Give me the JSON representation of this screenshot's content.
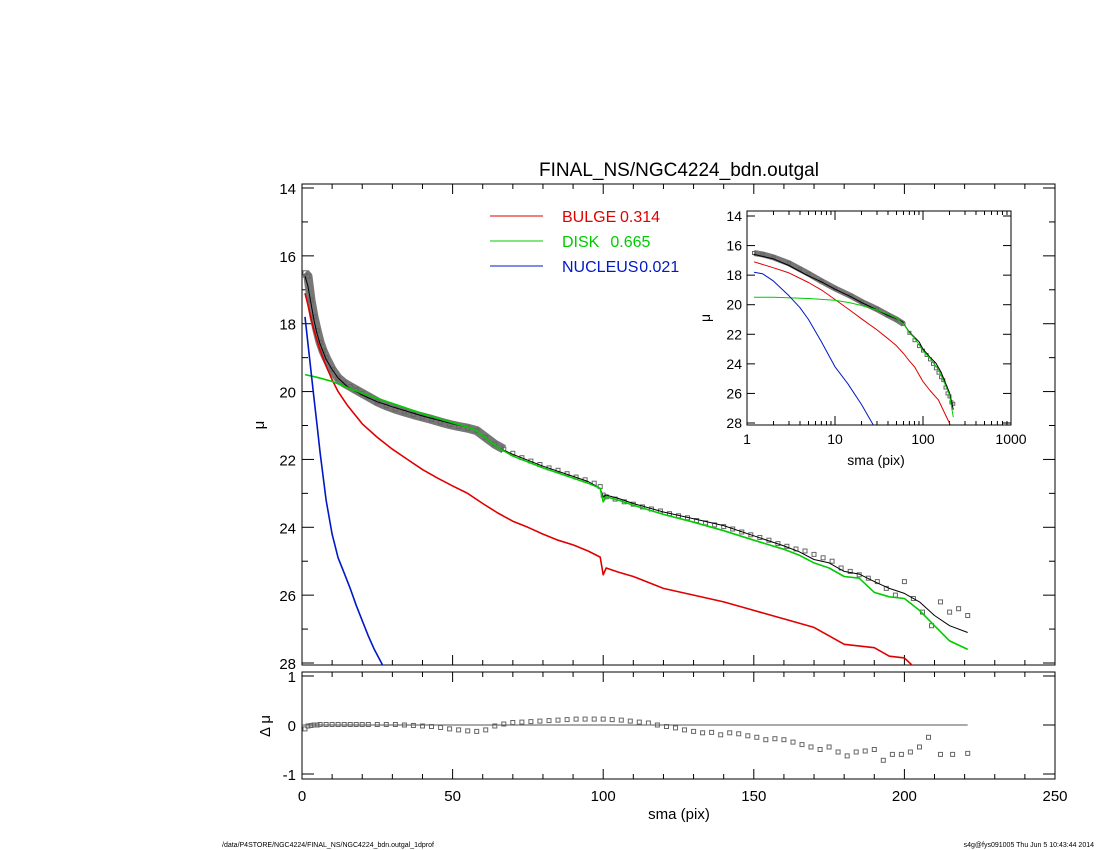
{
  "colors": {
    "bulge": "#e00000",
    "disk": "#00cc00",
    "nucleus": "#0018c8",
    "total": "#000000",
    "data_points": "#666666"
  },
  "footer": {
    "left": "/data/P4STORE/NGC4224/FINAL_NS/NGC4224_bdn.outgal_1dprof",
    "right": "s4g@fys091005  Thu Jun  5 10:43:44 2014"
  },
  "chart_data": [
    {
      "id": "main",
      "type": "line",
      "title": "FINAL_NS/NGC4224_bdn.outgal",
      "xlabel": "",
      "ylabel": "μ",
      "xlim": [
        0,
        250
      ],
      "ylim": [
        28,
        14
      ],
      "y_inverted": true,
      "yticks": [
        "14",
        "16",
        "18",
        "20",
        "22",
        "24",
        "26",
        "28"
      ],
      "legend_position": "top-center",
      "legend": [
        {
          "label": "BULGE",
          "value": "0.314",
          "series": "bulge"
        },
        {
          "label": "DISK",
          "value": "0.665",
          "series": "disk"
        },
        {
          "label": "NUCLEUS",
          "value": "0.021",
          "series": "nucleus"
        }
      ],
      "series": [
        {
          "key": "data",
          "kind": "points",
          "x": [
            1,
            2,
            3,
            4,
            5,
            6,
            7,
            8,
            10,
            12,
            14,
            16,
            18,
            20,
            22,
            25,
            28,
            31,
            34,
            37,
            40,
            43,
            46,
            49,
            52,
            55,
            58,
            61,
            64,
            67,
            70,
            73,
            76,
            79,
            82,
            85,
            88,
            91,
            94,
            97,
            99,
            100,
            101,
            104,
            107,
            110,
            113,
            116,
            119,
            122,
            125,
            128,
            131,
            134,
            137,
            140,
            143,
            146,
            149,
            152,
            155,
            158,
            161,
            164,
            167,
            170,
            173,
            176,
            179,
            182,
            185,
            188,
            191,
            194,
            197,
            200,
            203,
            206,
            209,
            212,
            215,
            218,
            221
          ],
          "y": [
            16.5,
            16.6,
            17.3,
            17.8,
            18.2,
            18.55,
            18.8,
            19.0,
            19.35,
            19.6,
            19.75,
            19.85,
            19.95,
            20.05,
            20.15,
            20.3,
            20.42,
            20.52,
            20.6,
            20.68,
            20.75,
            20.82,
            20.9,
            20.97,
            21.03,
            21.08,
            21.15,
            21.35,
            21.55,
            21.7,
            21.82,
            21.95,
            22.05,
            22.15,
            22.25,
            22.32,
            22.42,
            22.52,
            22.6,
            22.7,
            22.8,
            23.05,
            23.1,
            23.17,
            23.25,
            23.32,
            23.4,
            23.46,
            23.52,
            23.6,
            23.66,
            23.72,
            23.8,
            23.87,
            23.93,
            23.98,
            24.05,
            24.14,
            24.22,
            24.3,
            24.38,
            24.48,
            24.56,
            24.64,
            24.7,
            24.8,
            24.9,
            25.0,
            25.2,
            25.3,
            25.4,
            25.5,
            25.6,
            25.8,
            26.0,
            25.6,
            26.1,
            26.5,
            26.9,
            26.2,
            26.5,
            26.4,
            26.6
          ]
        },
        {
          "key": "total",
          "kind": "line",
          "x": [
            1,
            2,
            3,
            4,
            5,
            6,
            8,
            10,
            12,
            15,
            20,
            25,
            30,
            40,
            50,
            55,
            58,
            60,
            65,
            70,
            80,
            90,
            95,
            99,
            100,
            101,
            105,
            110,
            120,
            130,
            140,
            150,
            160,
            165,
            170,
            175,
            180,
            185,
            190,
            195,
            200,
            205,
            210,
            215,
            221
          ],
          "y": [
            16.6,
            16.9,
            17.4,
            17.9,
            18.3,
            18.6,
            19.05,
            19.35,
            19.6,
            19.85,
            20.1,
            20.3,
            20.45,
            20.72,
            20.95,
            21.05,
            21.15,
            21.3,
            21.65,
            21.85,
            22.2,
            22.5,
            22.65,
            22.85,
            23.1,
            23.05,
            23.15,
            23.3,
            23.55,
            23.75,
            23.95,
            24.25,
            24.55,
            24.72,
            24.95,
            25.05,
            25.3,
            25.38,
            25.6,
            25.8,
            25.95,
            26.2,
            26.6,
            26.9,
            27.1
          ]
        },
        {
          "key": "bulge",
          "kind": "line",
          "x": [
            1,
            2,
            3,
            4,
            5,
            6,
            8,
            10,
            12,
            15,
            20,
            25,
            30,
            35,
            40,
            45,
            50,
            55,
            60,
            65,
            70,
            75,
            80,
            85,
            90,
            95,
            99,
            100,
            101,
            105,
            110,
            120,
            130,
            140,
            150,
            160,
            170,
            180,
            190,
            195,
            200,
            203
          ],
          "y": [
            17.1,
            17.45,
            17.85,
            18.2,
            18.5,
            18.78,
            19.25,
            19.65,
            20.0,
            20.4,
            20.95,
            21.35,
            21.7,
            22.0,
            22.3,
            22.55,
            22.78,
            23.0,
            23.3,
            23.58,
            23.82,
            24.0,
            24.2,
            24.38,
            24.52,
            24.7,
            24.88,
            25.4,
            25.2,
            25.32,
            25.45,
            25.8,
            26.0,
            26.2,
            26.45,
            26.7,
            26.95,
            27.45,
            27.55,
            27.8,
            27.85,
            28.1
          ]
        },
        {
          "key": "disk",
          "kind": "line",
          "x": [
            1,
            5,
            10,
            15,
            20,
            30,
            40,
            50,
            55,
            58,
            60,
            65,
            70,
            80,
            90,
            95,
            99,
            100,
            101,
            105,
            110,
            120,
            130,
            140,
            150,
            160,
            165,
            170,
            175,
            180,
            185,
            190,
            195,
            200,
            205,
            210,
            215,
            221
          ],
          "y": [
            19.5,
            19.58,
            19.7,
            19.88,
            20.05,
            20.35,
            20.65,
            20.92,
            21.05,
            21.15,
            21.3,
            21.65,
            21.9,
            22.25,
            22.55,
            22.7,
            22.85,
            23.25,
            23.1,
            23.2,
            23.35,
            23.62,
            23.85,
            24.1,
            24.38,
            24.65,
            24.82,
            25.05,
            25.2,
            25.45,
            25.5,
            25.92,
            26.05,
            26.1,
            26.45,
            26.9,
            27.35,
            27.6
          ]
        },
        {
          "key": "nucleus",
          "kind": "line",
          "x": [
            1,
            2,
            3,
            4,
            5,
            6,
            7,
            8,
            10,
            12,
            14,
            16,
            18,
            20,
            22,
            24,
            27
          ],
          "y": [
            17.8,
            18.6,
            19.4,
            20.2,
            21.0,
            21.8,
            22.5,
            23.2,
            24.2,
            24.9,
            25.35,
            25.8,
            26.3,
            26.75,
            27.2,
            27.6,
            28.1
          ]
        }
      ]
    },
    {
      "id": "residual",
      "type": "scatter",
      "xlabel": "sma (pix)",
      "ylabel": "Δ μ",
      "xlim": [
        0,
        250
      ],
      "ylim": [
        -1,
        1
      ],
      "xticks": [
        "0",
        "50",
        "100",
        "150",
        "200",
        "250"
      ],
      "yticks": [
        "1",
        "0",
        "-1"
      ],
      "zero_line": [
        0,
        221
      ],
      "x": [
        1,
        2,
        3,
        4,
        5,
        6,
        8,
        10,
        12,
        14,
        16,
        18,
        20,
        22,
        25,
        28,
        31,
        34,
        37,
        40,
        43,
        46,
        49,
        52,
        55,
        58,
        61,
        64,
        67,
        70,
        73,
        76,
        79,
        82,
        85,
        88,
        91,
        94,
        97,
        100,
        103,
        106,
        109,
        112,
        115,
        118,
        121,
        124,
        127,
        130,
        133,
        136,
        139,
        142,
        145,
        148,
        151,
        154,
        157,
        160,
        163,
        166,
        169,
        172,
        175,
        178,
        181,
        184,
        187,
        190,
        193,
        196,
        199,
        202,
        205,
        208,
        212,
        216,
        221
      ],
      "y": [
        -0.08,
        -0.02,
        -0.01,
        0.0,
        0.0,
        0.01,
        0.01,
        0.01,
        0.01,
        0.01,
        0.01,
        0.01,
        0.01,
        0.01,
        0.01,
        0.01,
        0.01,
        0.0,
        -0.01,
        -0.02,
        -0.03,
        -0.05,
        -0.08,
        -0.1,
        -0.12,
        -0.13,
        -0.1,
        -0.02,
        0.02,
        0.05,
        0.06,
        0.07,
        0.08,
        0.09,
        0.1,
        0.11,
        0.12,
        0.12,
        0.12,
        0.12,
        0.11,
        0.1,
        0.08,
        0.06,
        0.04,
        0.0,
        -0.03,
        -0.06,
        -0.1,
        -0.13,
        -0.16,
        -0.15,
        -0.2,
        -0.16,
        -0.18,
        -0.22,
        -0.25,
        -0.3,
        -0.28,
        -0.3,
        -0.35,
        -0.4,
        -0.45,
        -0.5,
        -0.45,
        -0.55,
        -0.63,
        -0.55,
        -0.53,
        -0.5,
        -0.72,
        -0.6,
        -0.6,
        -0.55,
        -0.45,
        -0.25,
        -0.6,
        -0.6,
        -0.58
      ]
    },
    {
      "id": "inset",
      "type": "line",
      "xlabel": "sma (pix)",
      "ylabel": "μ",
      "x_scale": "log",
      "xlim": [
        1,
        1000
      ],
      "ylim": [
        28,
        14
      ],
      "y_inverted": true,
      "xticks": [
        "1",
        "10",
        "100",
        "1000"
      ],
      "yticks": [
        "14",
        "16",
        "18",
        "20",
        "22",
        "24",
        "26",
        "28"
      ],
      "series": [
        {
          "key": "data",
          "kind": "points",
          "x": [
            1.2,
            1.5,
            2,
            3,
            4,
            5,
            7,
            10,
            15,
            20,
            30,
            40,
            50,
            60,
            70,
            80,
            90,
            100,
            110,
            120,
            130,
            140,
            150,
            160,
            170,
            180,
            190,
            200,
            210,
            221
          ],
          "y": [
            16.5,
            16.6,
            16.8,
            17.2,
            17.6,
            17.9,
            18.4,
            18.9,
            19.4,
            19.8,
            20.3,
            20.7,
            21.0,
            21.3,
            21.9,
            22.4,
            22.8,
            23.1,
            23.4,
            23.7,
            24.0,
            24.3,
            24.6,
            24.9,
            25.1,
            25.6,
            26.0,
            26.2,
            26.6,
            26.7
          ]
        },
        {
          "key": "total",
          "kind": "line",
          "x": [
            1.2,
            2,
            3,
            5,
            7,
            10,
            15,
            20,
            30,
            40,
            50,
            58,
            62,
            70,
            80,
            90,
            100,
            120,
            140,
            160,
            180,
            200,
            221
          ],
          "y": [
            16.6,
            16.9,
            17.35,
            18.05,
            18.45,
            18.95,
            19.45,
            19.85,
            20.35,
            20.72,
            20.95,
            21.15,
            21.4,
            21.85,
            22.2,
            22.5,
            23.0,
            23.55,
            23.95,
            24.55,
            25.3,
            25.95,
            27.1
          ]
        },
        {
          "key": "bulge",
          "kind": "line",
          "x": [
            1.2,
            2,
            3,
            5,
            7,
            10,
            15,
            20,
            30,
            40,
            50,
            60,
            70,
            80,
            100,
            120,
            150,
            180,
            203
          ],
          "y": [
            17.1,
            17.5,
            17.85,
            18.5,
            19.0,
            19.65,
            20.4,
            20.95,
            21.7,
            22.3,
            22.78,
            23.3,
            23.8,
            24.2,
            25.2,
            25.8,
            26.45,
            27.45,
            28.1
          ]
        },
        {
          "key": "disk",
          "kind": "line",
          "x": [
            1.2,
            2,
            5,
            10,
            15,
            20,
            30,
            40,
            50,
            60,
            70,
            80,
            100,
            120,
            150,
            180,
            200,
            221
          ],
          "y": [
            19.5,
            19.5,
            19.58,
            19.7,
            19.88,
            20.05,
            20.35,
            20.65,
            20.92,
            21.3,
            21.9,
            22.25,
            23.1,
            23.62,
            24.38,
            25.45,
            26.1,
            27.6
          ]
        },
        {
          "key": "nucleus",
          "kind": "line",
          "x": [
            1.2,
            1.5,
            2,
            3,
            4,
            5,
            7,
            10,
            14,
            20,
            27
          ],
          "y": [
            17.8,
            17.9,
            18.4,
            19.4,
            20.2,
            21.0,
            22.5,
            24.2,
            25.35,
            26.75,
            28.1
          ]
        }
      ]
    }
  ]
}
